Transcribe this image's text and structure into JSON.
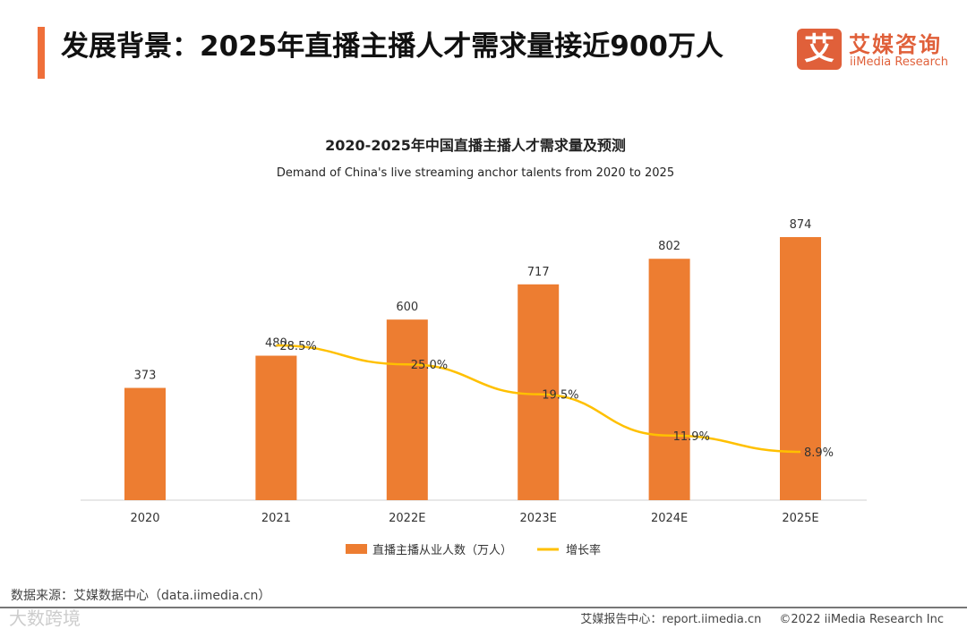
{
  "header": {
    "title": "发展背景：2025年直播主播人才需求量接近900万人"
  },
  "logo": {
    "mark": "艾",
    "cn": "艾媒咨询",
    "en": "iiMedia Research"
  },
  "footer": {
    "source": "数据来源：艾媒数据中心（data.iimedia.cn）",
    "watermark": "大数跨境",
    "report": "艾媒报告中心：report.iimedia.cn",
    "copyright": "©2022 iiMedia Research Inc"
  },
  "chart_data": {
    "type": "bar",
    "title": "2020-2025年中国直播主播人才需求量及预测",
    "subtitle": "Demand of China's live streaming anchor talents from 2020 to 2025",
    "categories": [
      "2020",
      "2021",
      "2022E",
      "2023E",
      "2024E",
      "2025E"
    ],
    "series": [
      {
        "name": "直播主播从业人数（万人）",
        "type": "bar",
        "color": "#ed7d31",
        "values": [
          373,
          480,
          600,
          717,
          802,
          874
        ]
      },
      {
        "name": "增长率",
        "type": "line",
        "color": "#ffc000",
        "values": [
          null,
          28.5,
          25.0,
          19.5,
          11.9,
          8.9
        ],
        "labels": [
          "",
          "28.5%",
          "25.0%",
          "19.5%",
          "11.9%",
          "8.9%"
        ]
      }
    ],
    "legend": "bottom",
    "grid": false
  }
}
